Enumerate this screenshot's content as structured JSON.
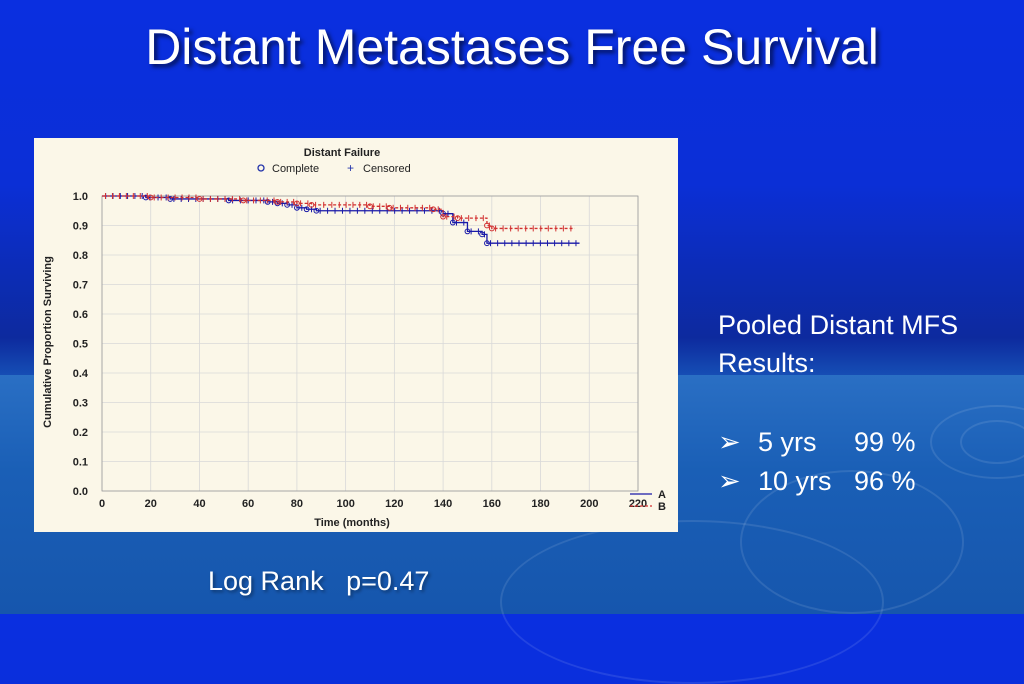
{
  "slide": {
    "title": "Distant Metastases Free Survival",
    "pooled_title_line1": "Pooled Distant MFS",
    "pooled_title_line2": "Results:",
    "bullets": [
      {
        "label": "5 yrs",
        "value": "99 %"
      },
      {
        "label": "10 yrs",
        "value": "96 %"
      }
    ],
    "log_rank_label": "Log Rank",
    "log_rank_value": "p=0.47",
    "bullet_icon": "arrow-bullet-icon"
  },
  "chart_data": {
    "type": "line",
    "step": true,
    "title": "Distant Failure",
    "legend": [
      {
        "label": "Complete",
        "marker": "o"
      },
      {
        "label": "Censored",
        "marker": "+"
      }
    ],
    "legend_placement": "top-center",
    "xlabel": "Time (months)",
    "ylabel": "Cumulative Proportion Surviving",
    "xlim": [
      0,
      220
    ],
    "ylim": [
      0,
      1.0
    ],
    "xticks": [
      0,
      20,
      40,
      60,
      80,
      100,
      120,
      140,
      160,
      180,
      200,
      220
    ],
    "yticks": [
      0.0,
      0.1,
      0.2,
      0.3,
      0.4,
      0.5,
      0.6,
      0.7,
      0.8,
      0.9,
      1.0
    ],
    "grid": true,
    "series": [
      {
        "name": "A",
        "color": "#1a1aa8",
        "x": [
          0,
          18,
          28,
          52,
          68,
          72,
          76,
          80,
          84,
          88,
          140,
          144,
          150,
          156,
          158,
          196
        ],
        "y": [
          1.0,
          0.995,
          0.99,
          0.985,
          0.98,
          0.975,
          0.97,
          0.96,
          0.955,
          0.95,
          0.94,
          0.91,
          0.88,
          0.87,
          0.84,
          0.84
        ]
      },
      {
        "name": "B",
        "color": "#d23030",
        "x": [
          0,
          20,
          40,
          58,
          72,
          80,
          86,
          96,
          110,
          118,
          136,
          140,
          146,
          158,
          160,
          194
        ],
        "y": [
          1.0,
          0.995,
          0.99,
          0.985,
          0.98,
          0.975,
          0.97,
          0.97,
          0.965,
          0.96,
          0.955,
          0.93,
          0.925,
          0.9,
          0.89,
          0.89
        ]
      }
    ]
  }
}
